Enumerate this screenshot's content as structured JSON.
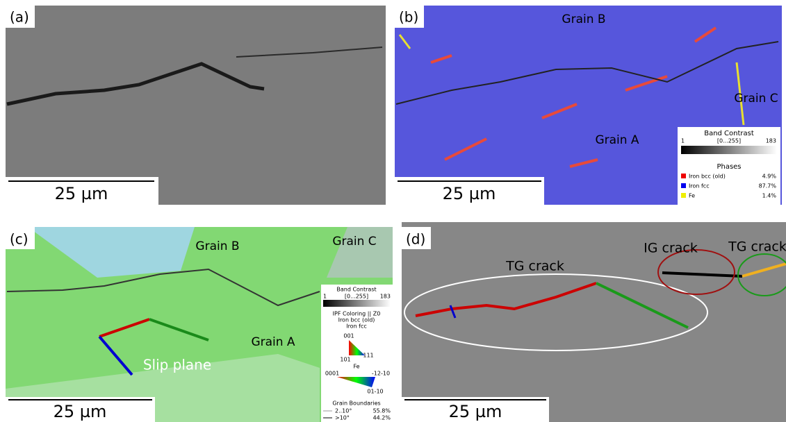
{
  "panels": [
    {
      "label": "(a)",
      "scale_bar": "25 µm"
    },
    {
      "label": "(b)",
      "scale_bar": "25 µm",
      "annotations": [
        "Grain B",
        "Grain C",
        "Grain A"
      ],
      "legend": {
        "title": "Band Contrast",
        "range": "[0...255]",
        "min": "1",
        "max": "183",
        "phases_title": "Phases",
        "phases": [
          {
            "name": "Iron bcc (old)",
            "value": "4.9%"
          },
          {
            "name": "Iron fcc",
            "value": "87.7%"
          },
          {
            "name": "Fe",
            "value": "1.4%"
          }
        ]
      }
    },
    {
      "label": "(c)",
      "scale_bar": "25 µm",
      "annotations": [
        "Grain B",
        "Grain C",
        "Grain A",
        "Slip plane"
      ],
      "legend": {
        "title": "Band Contrast",
        "range": "[0...255]",
        "min": "1",
        "max": "183",
        "ipf_title": "IPF Coloring || Z0",
        "ipf_phases": [
          "Iron bcc (old)",
          "Iron fcc"
        ],
        "fcc_keys": [
          "001",
          "101",
          "111"
        ],
        "fe_title": "Fe",
        "fe_keys": [
          "0001",
          "-12-10",
          "01-10"
        ],
        "gb_title": "Grain Boundaries",
        "gb": [
          {
            "name": "2..10°",
            "value": "55.8%"
          },
          {
            "name": ">10°",
            "value": "44.2%"
          }
        ]
      }
    },
    {
      "label": "(d)",
      "scale_bar": "25 µm",
      "annotations": [
        "TG crack",
        "IG crack",
        "TG crack"
      ]
    }
  ]
}
